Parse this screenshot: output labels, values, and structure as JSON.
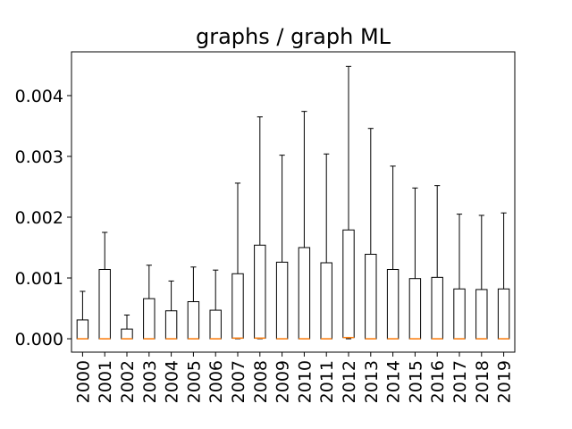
{
  "chart_data": {
    "type": "boxplot",
    "title": "graphs / graph ML",
    "xlabel": "",
    "ylabel": "",
    "ylim": [
      -0.00022,
      0.00472
    ],
    "yticks": [
      0,
      0.001,
      0.002,
      0.003,
      0.004
    ],
    "ytick_labels": [
      "0.000",
      "0.001",
      "0.002",
      "0.003",
      "0.004"
    ],
    "grid": false,
    "categories": [
      "2000",
      "2001",
      "2002",
      "2003",
      "2004",
      "2005",
      "2006",
      "2007",
      "2008",
      "2009",
      "2010",
      "2011",
      "2012",
      "2013",
      "2014",
      "2015",
      "2016",
      "2017",
      "2018",
      "2019"
    ],
    "series": [
      {
        "q1": [
          0,
          0,
          0,
          0,
          0,
          0,
          0,
          1e-05,
          1e-05,
          0,
          0,
          0,
          2e-05,
          0,
          0,
          0,
          0,
          0,
          0,
          0
        ],
        "median": [
          0,
          0,
          0,
          0,
          0,
          0,
          0,
          1e-05,
          1e-05,
          0,
          0,
          0,
          2e-05,
          0,
          0,
          0,
          0,
          0,
          0,
          0
        ],
        "q3": [
          0.00031,
          0.00114,
          0.00016,
          0.00066,
          0.00046,
          0.00061,
          0.00047,
          0.00107,
          0.00154,
          0.00126,
          0.0015,
          0.00125,
          0.00179,
          0.00139,
          0.00114,
          0.00099,
          0.00101,
          0.00082,
          0.00081,
          0.00082
        ],
        "whisker_low": [
          0,
          0,
          0,
          0,
          0,
          0,
          0,
          0,
          0,
          0,
          0,
          0,
          0,
          0,
          0,
          0,
          0,
          0,
          0,
          0
        ],
        "whisker_high": [
          0.00078,
          0.00175,
          0.00039,
          0.00121,
          0.00095,
          0.00118,
          0.00113,
          0.00256,
          0.00365,
          0.00302,
          0.00374,
          0.00304,
          0.00448,
          0.00346,
          0.00284,
          0.00248,
          0.00252,
          0.00205,
          0.00203,
          0.00207
        ]
      }
    ],
    "colors": {
      "box": "#000000",
      "median": "#ff7f0e",
      "background": "#ffffff"
    }
  }
}
